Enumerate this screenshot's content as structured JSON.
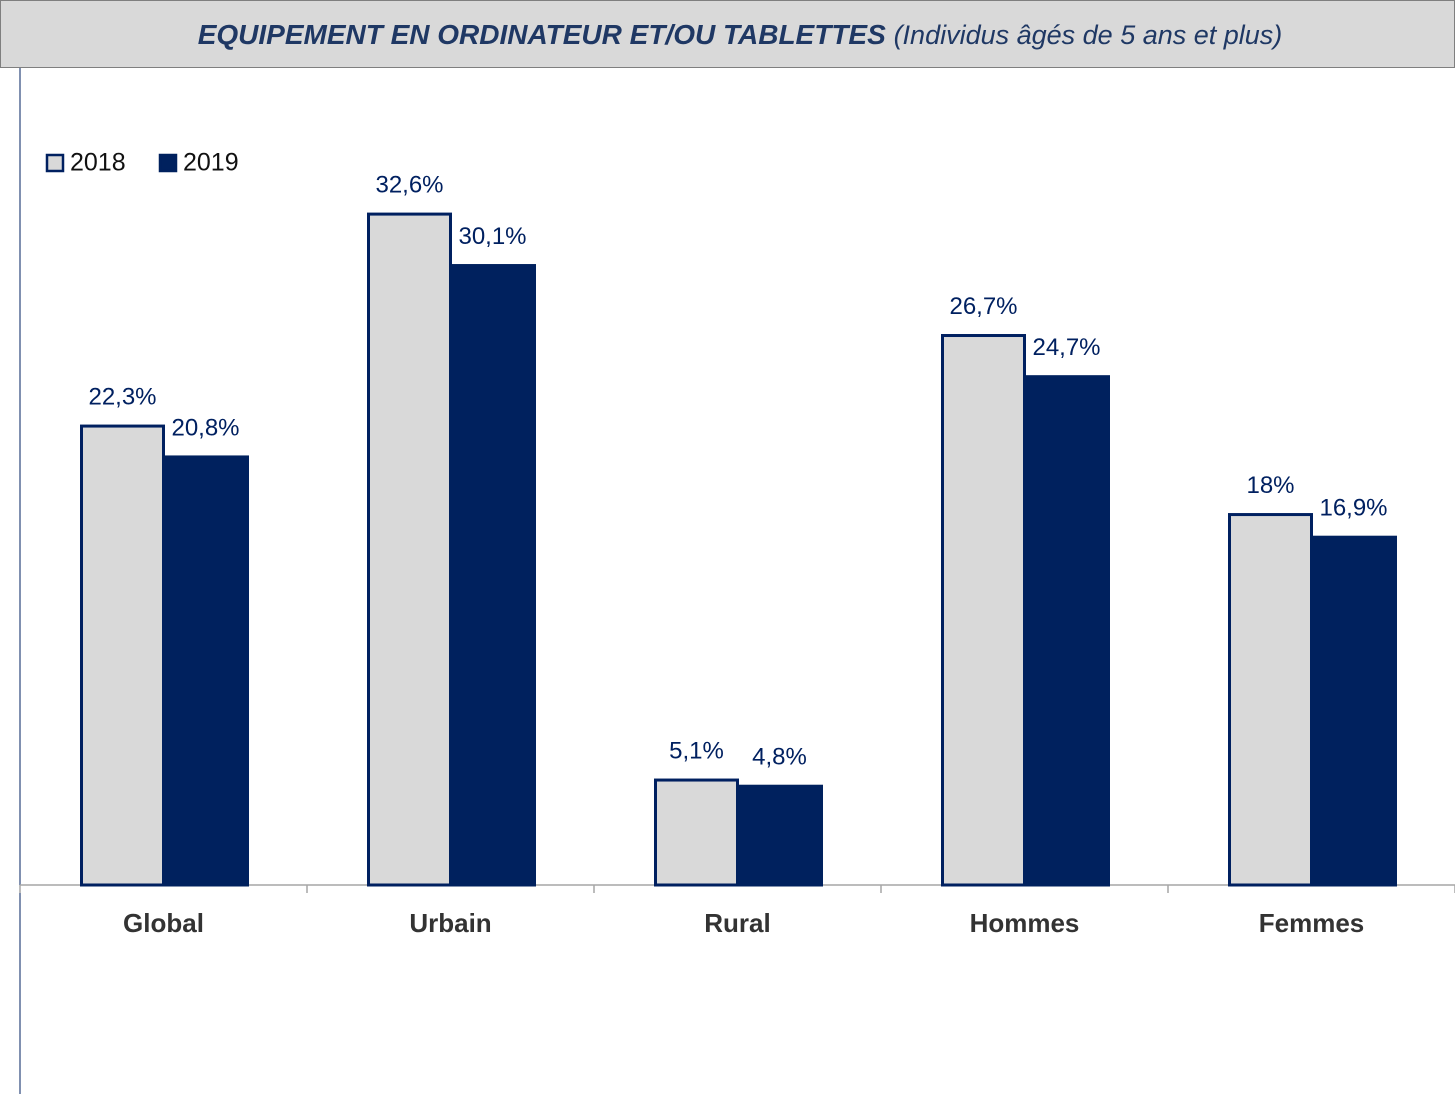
{
  "chart_data": {
    "type": "bar",
    "title": "EQUIPEMENT EN ORDINATEUR ET/OU TABLETTES",
    "subtitle": "(Individus âgés de 5 ans et plus)",
    "categories": [
      "Global",
      "Urbain",
      "Rural",
      "Hommes",
      "Femmes"
    ],
    "series": [
      {
        "name": "2018",
        "color": "#d9d9d9",
        "edge_color": "#002060",
        "values": [
          22.3,
          32.6,
          5.1,
          26.7,
          18
        ],
        "value_labels": [
          "22,3%",
          "32,6%",
          "5,1%",
          "26,7%",
          "18%"
        ]
      },
      {
        "name": "2019",
        "color": "#00215e",
        "edge_color": "#00215e",
        "values": [
          20.8,
          30.1,
          4.8,
          24.7,
          16.9
        ],
        "value_labels": [
          "20,8%",
          "30,1%",
          "4,8%",
          "24,7%",
          "16,9%"
        ]
      }
    ],
    "legend": "upper left"
  }
}
